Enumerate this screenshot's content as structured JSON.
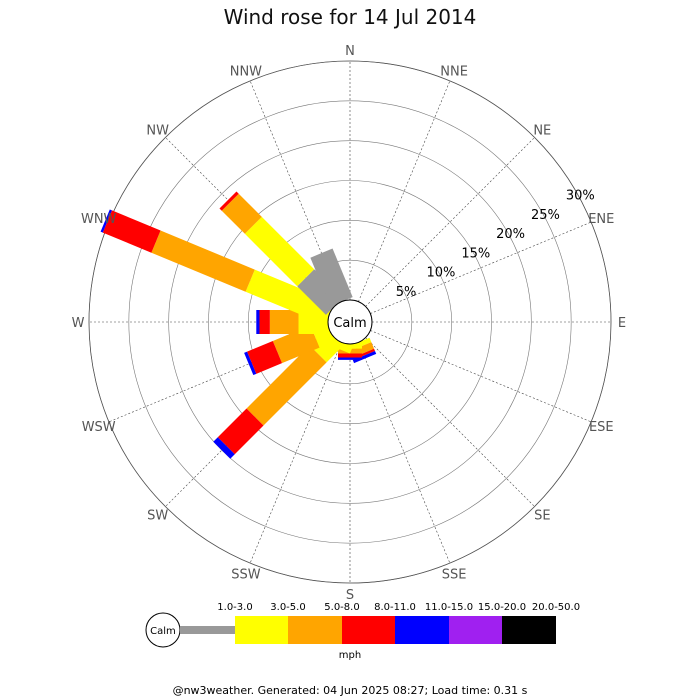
{
  "chart_data": {
    "type": "wind-rose",
    "title": "Wind rose for 14 Jul 2014",
    "directions": [
      "N",
      "NNE",
      "NE",
      "ENE",
      "E",
      "ESE",
      "SE",
      "SSE",
      "S",
      "SSW",
      "SW",
      "WSW",
      "W",
      "WNW",
      "NW",
      "NNW"
    ],
    "radial_ticks": [
      "5%",
      "10%",
      "15%",
      "20%",
      "25%",
      "30%"
    ],
    "radial_tick_values": [
      5,
      10,
      15,
      20,
      25,
      30
    ],
    "radial_max": 30,
    "calm_label": "Calm",
    "unit": "mph",
    "speed_bins": [
      "1.0-3.0",
      "3.0-5.0",
      "5.0-8.0",
      "8.0-11.0",
      "11.0-15.0",
      "15.0-20.0",
      "20.0-50.0"
    ],
    "colors": [
      "#999999",
      "#ffff00",
      "#ffa500",
      "#ff0000",
      "#0000ff",
      "#a020f0",
      "#000000"
    ],
    "calm_percent": 2.0,
    "series_by_direction": [
      {
        "dir": "N",
        "values": [
          0,
          0,
          0,
          0,
          0,
          0,
          0
        ]
      },
      {
        "dir": "NNE",
        "values": [
          0,
          0,
          0,
          0,
          0,
          0,
          0
        ]
      },
      {
        "dir": "NE",
        "values": [
          0,
          0,
          0,
          0,
          0,
          0,
          0
        ]
      },
      {
        "dir": "ENE",
        "values": [
          0,
          0,
          0,
          0,
          0,
          0,
          0
        ]
      },
      {
        "dir": "E",
        "values": [
          0,
          0,
          0,
          0,
          0,
          0,
          0
        ]
      },
      {
        "dir": "ESE",
        "values": [
          0,
          0,
          0,
          0,
          0,
          0,
          0
        ]
      },
      {
        "dir": "SE",
        "values": [
          0,
          0,
          0,
          0,
          0,
          0,
          0
        ]
      },
      {
        "dir": "SSE",
        "values": [
          0,
          0.6,
          0.9,
          0.3,
          0.4,
          0,
          0
        ]
      },
      {
        "dir": "S",
        "values": [
          0,
          0.6,
          0.6,
          0.5,
          0.3,
          0,
          0
        ]
      },
      {
        "dir": "SSW",
        "values": [
          0,
          0.9,
          0,
          0,
          0,
          0,
          0
        ]
      },
      {
        "dir": "SW",
        "values": [
          0,
          2.9,
          11.2,
          5.1,
          0.8,
          0,
          0
        ]
      },
      {
        "dir": "WSW",
        "values": [
          0,
          2.0,
          5.1,
          3.5,
          0.4,
          0,
          0
        ]
      },
      {
        "dir": "W",
        "values": [
          0,
          3.7,
          3.6,
          1.3,
          0.4,
          0,
          0
        ]
      },
      {
        "dir": "WNW",
        "values": [
          0,
          10.8,
          12.8,
          6.6,
          0.3,
          0,
          0
        ]
      },
      {
        "dir": "NW",
        "values": [
          5.1,
          9.3,
          4.1,
          0.4,
          0,
          0,
          0
        ]
      },
      {
        "dir": "NNW",
        "values": [
          6.6,
          0,
          0,
          0,
          0,
          0,
          0
        ]
      }
    ]
  },
  "footer": "@nw3weather. Generated: 04 Jun 2025 08:27; Load time: 0.31 s"
}
